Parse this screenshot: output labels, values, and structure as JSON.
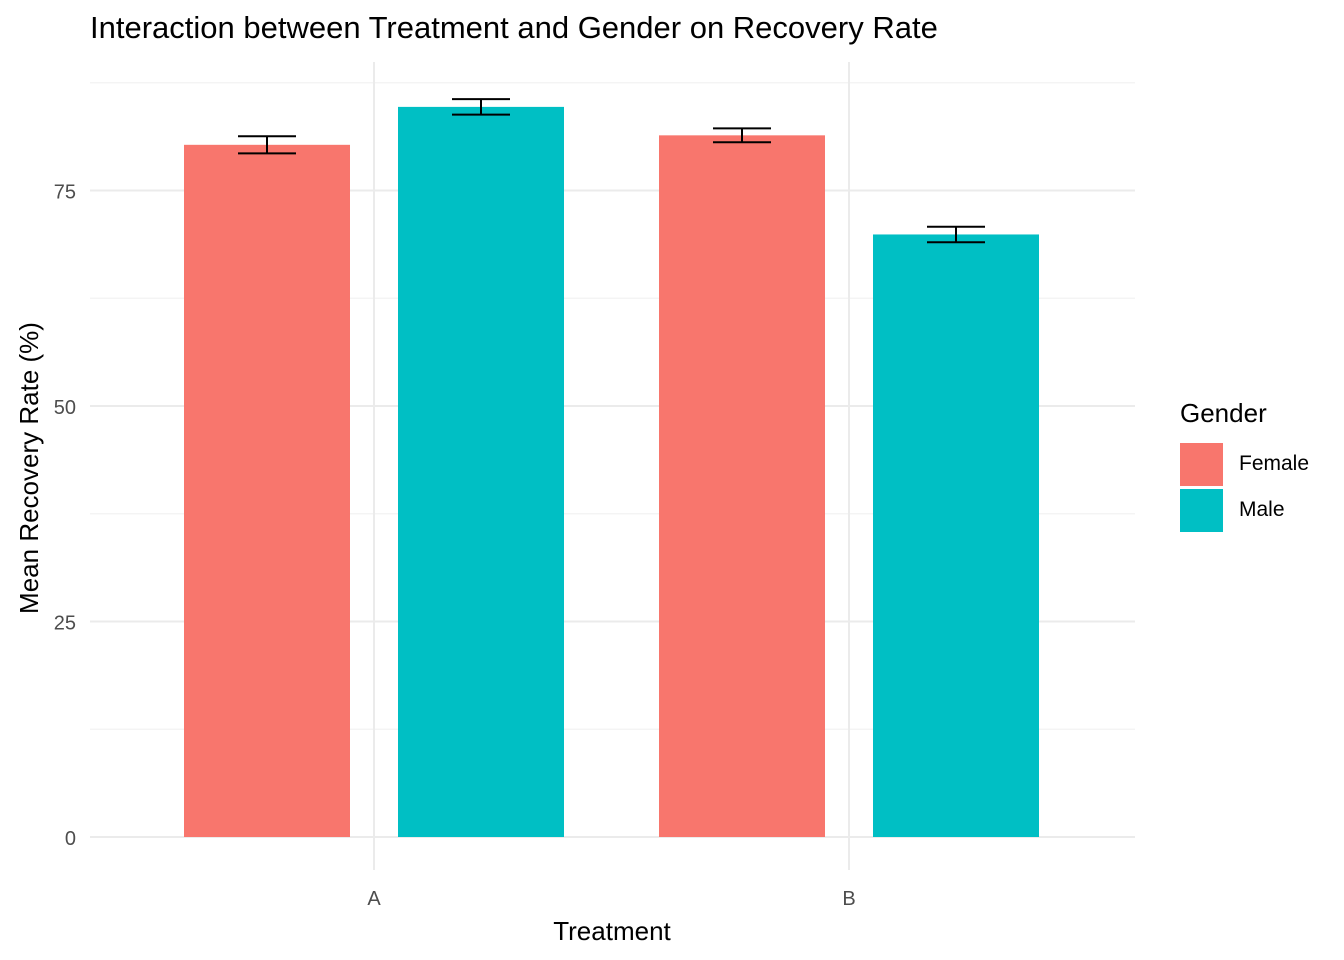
{
  "chart_data": {
    "type": "bar",
    "title": "Interaction between Treatment and Gender on Recovery Rate",
    "xlabel": "Treatment",
    "ylabel": "Mean Recovery Rate (%)",
    "categories": [
      "A",
      "B"
    ],
    "series": [
      {
        "name": "Female",
        "color": "#F8766D",
        "values": [
          80.3,
          81.4
        ],
        "error": [
          1.0,
          0.8
        ]
      },
      {
        "name": "Male",
        "color": "#00BFC4",
        "values": [
          84.7,
          69.9
        ],
        "error": [
          0.9,
          0.9
        ]
      }
    ],
    "ylim": [
      0,
      90
    ],
    "yticks": [
      0,
      25,
      50,
      75
    ],
    "ytick_labels": [
      "0",
      "25",
      "50",
      "75"
    ],
    "grid": true,
    "legend": {
      "title": "Gender",
      "position": "right"
    }
  }
}
